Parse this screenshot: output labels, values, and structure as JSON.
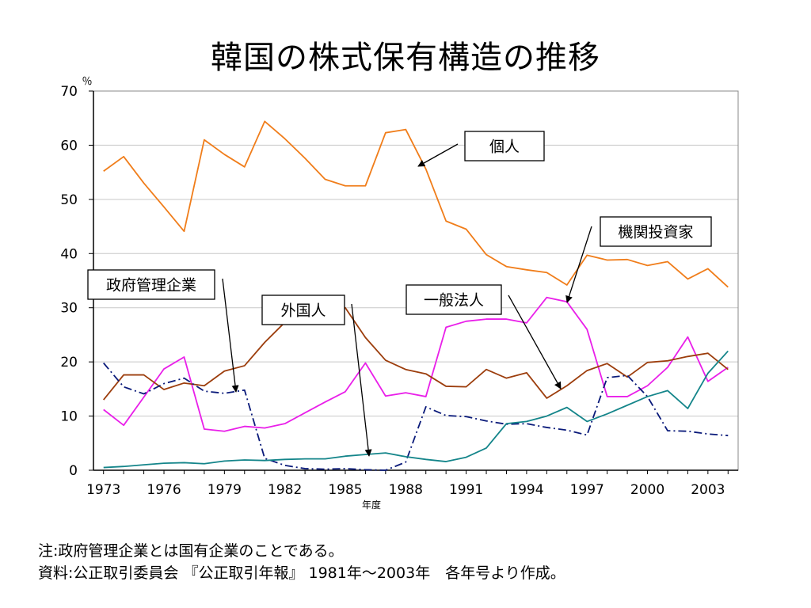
{
  "title": "韓国の株式保有構造の推移",
  "notes": {
    "line1": "注:政府管理企業とは国有企業のことである。",
    "line2": "資料:公正取引委員会 『公正取引年報』 1981年～2003年　各年号より作成。"
  },
  "chart_data": {
    "type": "line",
    "title": "韓国の株式保有構造の推移",
    "xlabel": "年度",
    "ylabel": "％",
    "xlim": [
      1972.5,
      2004.5
    ],
    "ylim": [
      0,
      70
    ],
    "x_ticks": [
      "1973",
      "1976",
      "1979",
      "1982",
      "1985",
      "1988",
      "1991",
      "1994",
      "1997",
      "2000",
      "2003"
    ],
    "y_ticks": [
      "0",
      "10",
      "20",
      "30",
      "40",
      "50",
      "60",
      "70"
    ],
    "grid": "horizontal",
    "x": [
      1973,
      1974,
      1975,
      1976,
      1977,
      1978,
      1979,
      1980,
      1981,
      1982,
      1983,
      1984,
      1985,
      1986,
      1987,
      1988,
      1989,
      1990,
      1991,
      1992,
      1993,
      1994,
      1995,
      1996,
      1997,
      1998,
      1999,
      2000,
      2001,
      2002,
      2003,
      2004
    ],
    "series": [
      {
        "name": "個人",
        "color": "#f07d1a",
        "dash": "solid",
        "values": [
          55.2,
          57.9,
          53.0,
          48.6,
          44.1,
          61.0,
          58.3,
          56.0,
          64.4,
          61.2,
          57.6,
          53.7,
          52.5,
          52.5,
          62.3,
          62.9,
          55.6,
          46.0,
          44.5,
          39.8,
          37.6,
          37.0,
          36.5,
          34.2,
          39.7,
          38.8,
          38.9,
          37.8,
          38.5,
          35.3,
          37.2,
          33.8
        ]
      },
      {
        "name": "機関投資家",
        "color": "#e91fe9",
        "dash": "solid",
        "values": [
          11.2,
          8.3,
          13.5,
          18.7,
          20.9,
          7.6,
          7.2,
          8.1,
          7.8,
          8.6,
          10.6,
          12.6,
          14.5,
          19.8,
          13.7,
          14.3,
          13.6,
          26.4,
          27.5,
          27.9,
          27.9,
          27.2,
          31.9,
          31.1,
          26.0,
          13.6,
          13.6,
          15.6,
          19.0,
          24.6,
          16.4,
          19.0
        ]
      },
      {
        "name": "一般法人",
        "color": "#9c3d0c",
        "dash": "solid",
        "values": [
          13.0,
          17.6,
          17.6,
          14.9,
          16.1,
          15.6,
          18.3,
          19.3,
          23.6,
          27.3,
          28.6,
          31.0,
          30.0,
          24.5,
          20.3,
          18.6,
          17.8,
          15.5,
          15.4,
          18.6,
          17.0,
          18.0,
          13.3,
          15.6,
          18.4,
          19.7,
          17.2,
          19.9,
          20.2,
          21.0,
          21.6,
          18.6
        ]
      },
      {
        "name": "政府管理企業",
        "color": "#0a1a7a",
        "dash": "dashdot",
        "values": [
          19.8,
          15.4,
          14.1,
          16.0,
          17.0,
          14.6,
          14.2,
          14.8,
          2.2,
          0.9,
          0.3,
          0.2,
          0.3,
          0.1,
          0.0,
          1.5,
          11.7,
          10.1,
          9.9,
          9.1,
          8.5,
          8.6,
          7.9,
          7.4,
          6.5,
          17.1,
          17.5,
          13.6,
          7.3,
          7.2,
          6.7,
          6.4
        ]
      },
      {
        "name": "外国人",
        "color": "#14858a",
        "dash": "solid",
        "values": [
          0.5,
          0.7,
          1.0,
          1.3,
          1.4,
          1.2,
          1.7,
          1.9,
          1.8,
          2.0,
          2.1,
          2.1,
          2.6,
          2.9,
          3.2,
          2.5,
          2.0,
          1.6,
          2.4,
          4.1,
          8.6,
          9.0,
          10.0,
          11.6,
          9.0,
          10.4,
          12.0,
          13.6,
          14.7,
          11.4,
          17.9,
          22.0
        ]
      }
    ],
    "annotations": [
      {
        "label": "個人",
        "series": "個人"
      },
      {
        "label": "機関投資家",
        "series": "機関投資家"
      },
      {
        "label": "政府管理企業",
        "series": "政府管理企業"
      },
      {
        "label": "外国人",
        "series": "外国人"
      },
      {
        "label": "一般法人",
        "series": "一般法人"
      }
    ]
  }
}
